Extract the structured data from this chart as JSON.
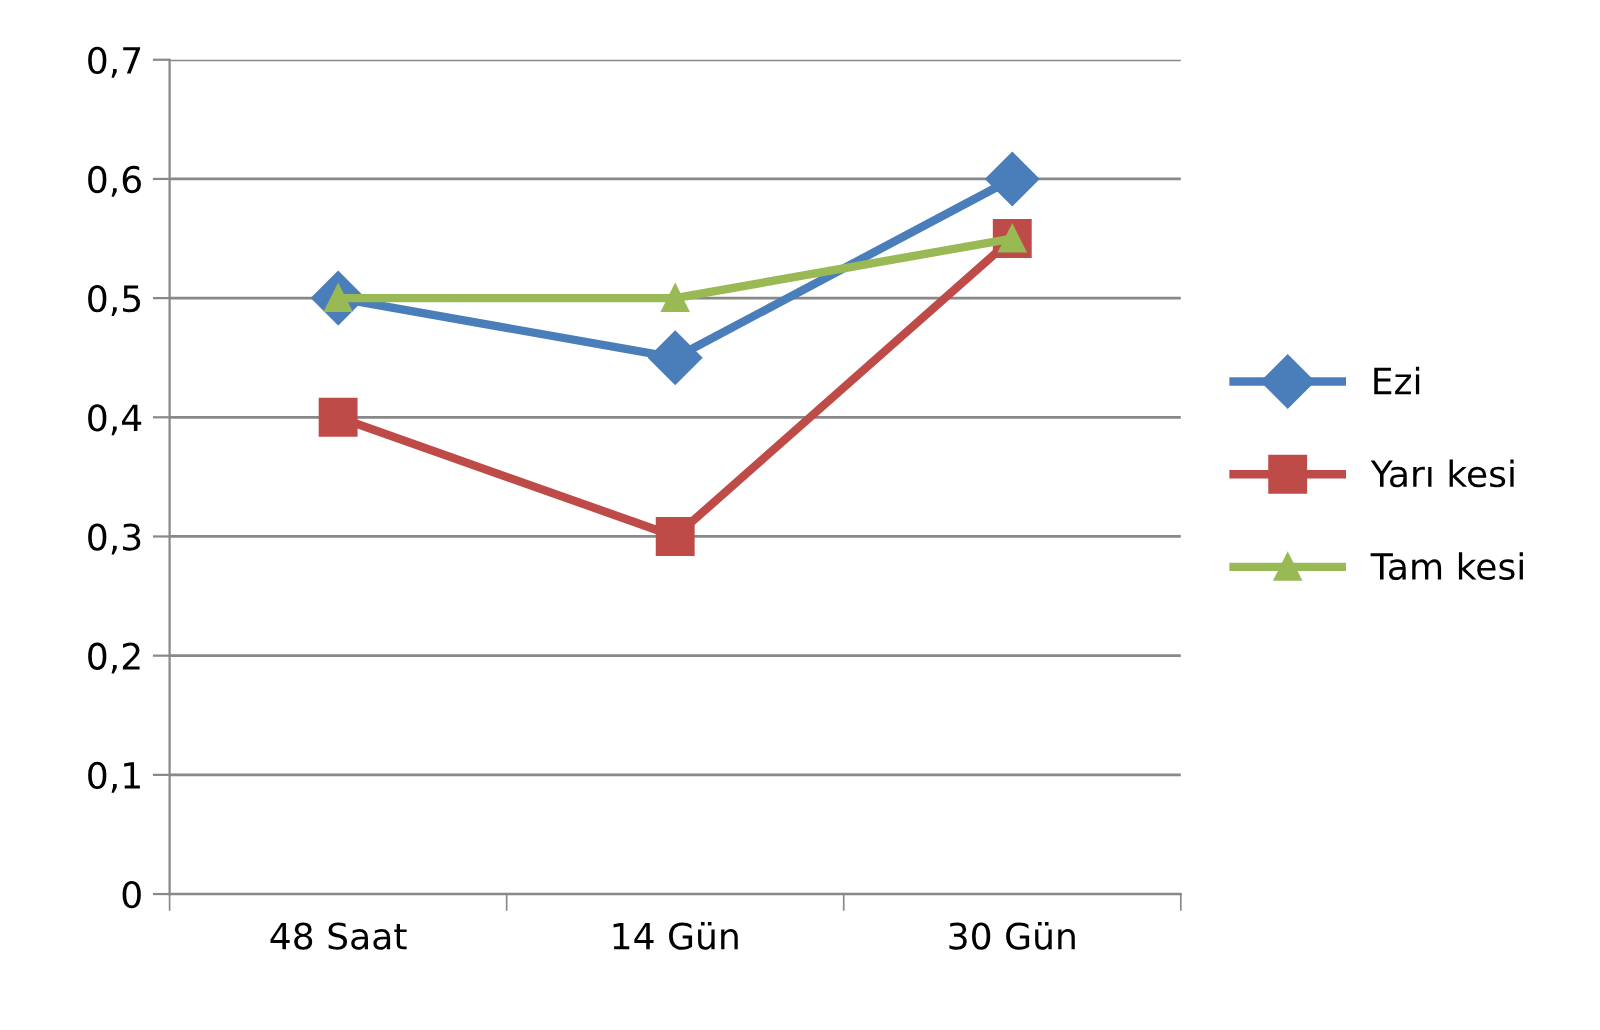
{
  "chart_data": {
    "type": "line",
    "categories": [
      "48 Saat",
      "14 Gün",
      "30 Gün"
    ],
    "series": [
      {
        "name": "Ezi",
        "color": "#4a7ebb",
        "marker": "diamond",
        "values": [
          0.5,
          0.45,
          0.6
        ]
      },
      {
        "name": "Yarı kesi",
        "color": "#be4b48",
        "marker": "square",
        "values": [
          0.4,
          0.3,
          0.55
        ]
      },
      {
        "name": "Tam kesi",
        "color": "#98b954",
        "marker": "triangle",
        "values": [
          0.5,
          0.5,
          0.55
        ]
      }
    ],
    "ylim": [
      0,
      0.7
    ],
    "yticks": [
      0,
      {
        "value": 0.1,
        "label": "0,1"
      },
      {
        "value": 0.2,
        "label": "0,2"
      },
      {
        "value": 0.3,
        "label": "0,3"
      },
      {
        "value": 0.4,
        "label": "0,4"
      },
      {
        "value": 0.5,
        "label": "0,5"
      },
      {
        "value": 0.6,
        "label": "0,6"
      },
      {
        "value": 0.7,
        "label": "0,7"
      }
    ],
    "grid": "y",
    "legend": "right",
    "line_style": "solid"
  }
}
